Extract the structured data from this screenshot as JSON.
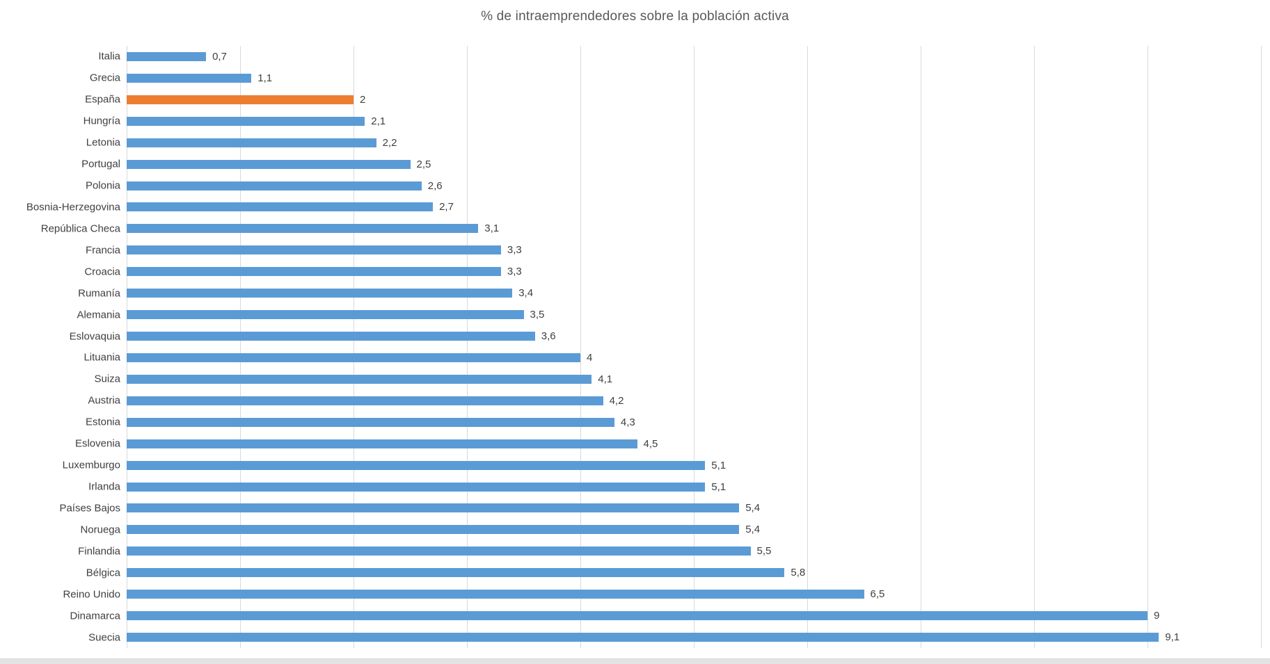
{
  "chart_data": {
    "type": "bar",
    "orientation": "horizontal",
    "title": "% de intraemprendedores sobre la población activa",
    "categories": [
      "Italia",
      "Grecia",
      "España",
      "Hungría",
      "Letonia",
      "Portugal",
      "Polonia",
      "Bosnia-Herzegovina",
      "República Checa",
      "Francia",
      "Croacia",
      "Rumanía",
      "Alemania",
      "Eslovaquia",
      "Lituania",
      "Suiza",
      "Austria",
      "Estonia",
      "Eslovenia",
      "Luxemburgo",
      "Irlanda",
      "Países Bajos",
      "Noruega",
      "Finlandia",
      "Bélgica",
      "Reino Unido",
      "Dinamarca",
      "Suecia"
    ],
    "values": [
      0.7,
      1.1,
      2,
      2.1,
      2.2,
      2.5,
      2.6,
      2.7,
      3.1,
      3.3,
      3.3,
      3.4,
      3.5,
      3.6,
      4,
      4.1,
      4.2,
      4.3,
      4.5,
      5.1,
      5.1,
      5.4,
      5.4,
      5.5,
      5.8,
      6.5,
      9,
      9.1
    ],
    "value_labels": [
      "0,7",
      "1,1",
      "2",
      "2,1",
      "2,2",
      "2,5",
      "2,6",
      "2,7",
      "3,1",
      "3,3",
      "3,3",
      "3,4",
      "3,5",
      "3,6",
      "4",
      "4,1",
      "4,2",
      "4,3",
      "4,5",
      "5,1",
      "5,1",
      "5,4",
      "5,4",
      "5,5",
      "5,8",
      "6,5",
      "9",
      "9,1"
    ],
    "highlight_category": "España",
    "colors": {
      "bar": "#5B9BD5",
      "highlight": "#ED7D31",
      "gridline": "#D9D9D9",
      "title_text": "#595959",
      "label_text": "#404040"
    },
    "xlabel": "",
    "ylabel": "",
    "xlim": [
      0,
      10
    ],
    "gridline_step": 1,
    "grid": true,
    "legend": "none",
    "x_tick_labels_visible": false
  }
}
